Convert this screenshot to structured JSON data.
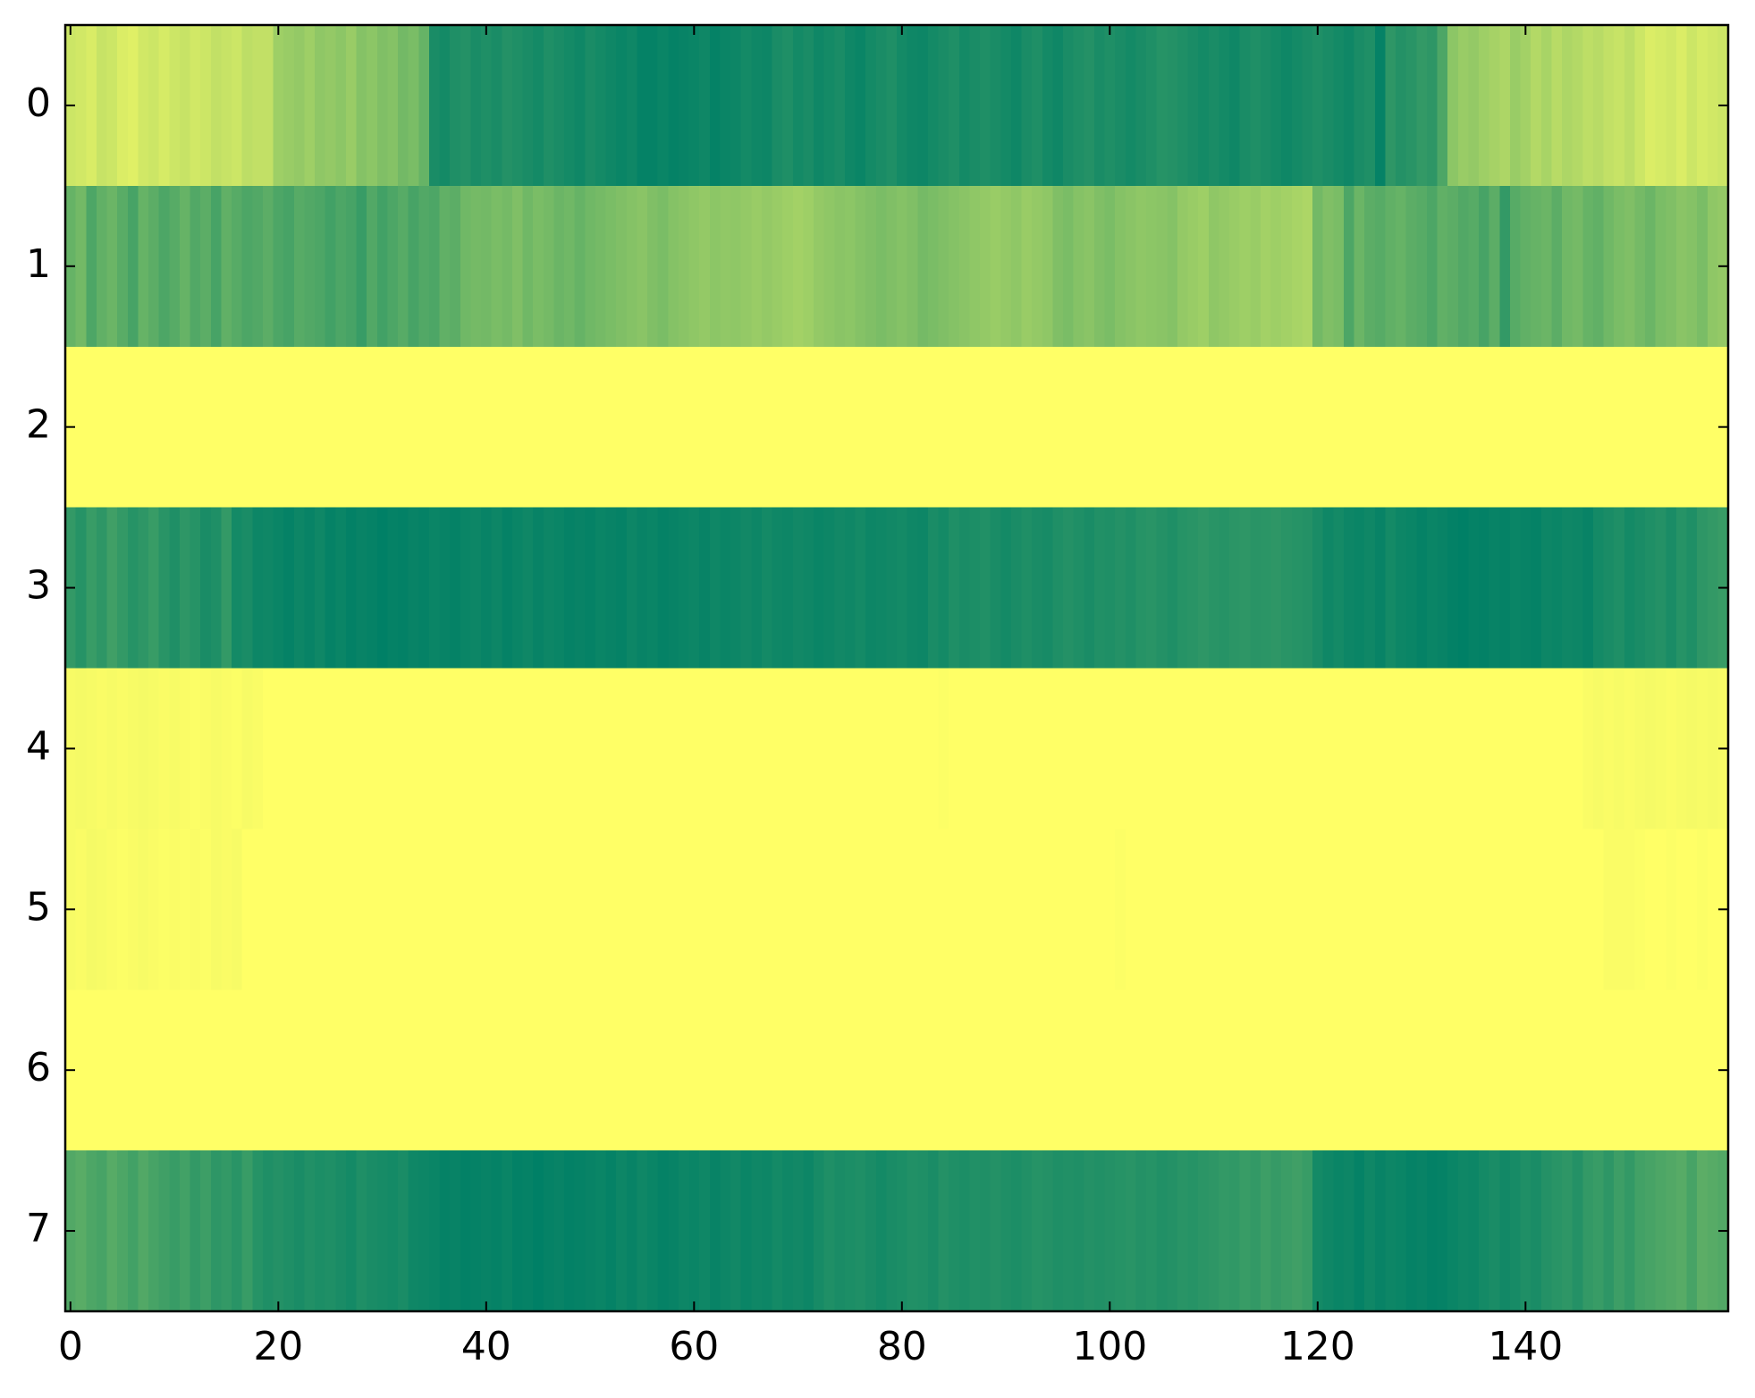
{
  "chart_data": {
    "type": "heatmap",
    "colormap": "summer",
    "xlim": [
      -0.5,
      159.5
    ],
    "ylim": [
      7.5,
      -0.5
    ],
    "xticks": [
      0,
      20,
      40,
      60,
      80,
      100,
      120,
      140
    ],
    "yticks": [
      0,
      1,
      2,
      3,
      4,
      5,
      6,
      7
    ],
    "z": [
      [
        0.8,
        0.82,
        0.85,
        0.78,
        0.8,
        0.86,
        0.88,
        0.82,
        0.8,
        0.84,
        0.8,
        0.78,
        0.82,
        0.8,
        0.76,
        0.78,
        0.8,
        0.74,
        0.76,
        0.76,
        0.62,
        0.6,
        0.58,
        0.62,
        0.56,
        0.58,
        0.55,
        0.6,
        0.52,
        0.55,
        0.5,
        0.52,
        0.45,
        0.48,
        0.4,
        0.1,
        0.08,
        0.12,
        0.14,
        0.1,
        0.12,
        0.1,
        0.14,
        0.12,
        0.1,
        0.08,
        0.12,
        0.1,
        0.08,
        0.06,
        0.1,
        0.08,
        0.06,
        0.04,
        0.06,
        0.02,
        0.02,
        0.04,
        0.02,
        0.03,
        0.04,
        0.06,
        0.02,
        0.04,
        0.05,
        0.08,
        0.06,
        0.05,
        0.1,
        0.12,
        0.08,
        0.1,
        0.06,
        0.08,
        0.1,
        0.06,
        0.04,
        0.08,
        0.1,
        0.12,
        0.08,
        0.06,
        0.05,
        0.08,
        0.1,
        0.12,
        0.08,
        0.1,
        0.12,
        0.1,
        0.08,
        0.06,
        0.1,
        0.12,
        0.08,
        0.06,
        0.1,
        0.12,
        0.14,
        0.1,
        0.12,
        0.1,
        0.08,
        0.1,
        0.12,
        0.15,
        0.14,
        0.12,
        0.1,
        0.08,
        0.1,
        0.08,
        0.06,
        0.1,
        0.12,
        0.1,
        0.08,
        0.06,
        0.08,
        0.1,
        0.12,
        0.1,
        0.08,
        0.06,
        0.1,
        0.12,
        0.02,
        0.18,
        0.14,
        0.16,
        0.2,
        0.18,
        0.3,
        0.55,
        0.6,
        0.58,
        0.62,
        0.65,
        0.68,
        0.6,
        0.64,
        0.7,
        0.66,
        0.72,
        0.68,
        0.7,
        0.74,
        0.72,
        0.76,
        0.78,
        0.74,
        0.8,
        0.86,
        0.84,
        0.82,
        0.86,
        0.8,
        0.84,
        0.82,
        0.8
      ],
      [
        0.4,
        0.45,
        0.3,
        0.38,
        0.42,
        0.35,
        0.28,
        0.4,
        0.36,
        0.3,
        0.34,
        0.4,
        0.32,
        0.36,
        0.28,
        0.38,
        0.34,
        0.3,
        0.32,
        0.36,
        0.3,
        0.28,
        0.34,
        0.32,
        0.3,
        0.26,
        0.3,
        0.28,
        0.22,
        0.32,
        0.26,
        0.3,
        0.34,
        0.28,
        0.32,
        0.3,
        0.38,
        0.36,
        0.44,
        0.46,
        0.45,
        0.48,
        0.46,
        0.5,
        0.44,
        0.48,
        0.46,
        0.42,
        0.44,
        0.4,
        0.44,
        0.46,
        0.48,
        0.5,
        0.52,
        0.54,
        0.5,
        0.48,
        0.52,
        0.54,
        0.56,
        0.58,
        0.55,
        0.57,
        0.56,
        0.58,
        0.6,
        0.58,
        0.6,
        0.62,
        0.64,
        0.62,
        0.58,
        0.56,
        0.54,
        0.55,
        0.52,
        0.5,
        0.48,
        0.5,
        0.52,
        0.5,
        0.46,
        0.48,
        0.5,
        0.52,
        0.54,
        0.56,
        0.58,
        0.6,
        0.58,
        0.56,
        0.6,
        0.58,
        0.56,
        0.5,
        0.48,
        0.52,
        0.54,
        0.5,
        0.48,
        0.52,
        0.54,
        0.56,
        0.55,
        0.54,
        0.52,
        0.58,
        0.6,
        0.62,
        0.56,
        0.58,
        0.6,
        0.62,
        0.6,
        0.64,
        0.62,
        0.64,
        0.66,
        0.68,
        0.45,
        0.5,
        0.48,
        0.3,
        0.42,
        0.36,
        0.34,
        0.38,
        0.4,
        0.36,
        0.34,
        0.3,
        0.38,
        0.36,
        0.32,
        0.34,
        0.28,
        0.36,
        0.2,
        0.34,
        0.38,
        0.4,
        0.42,
        0.36,
        0.44,
        0.46,
        0.4,
        0.38,
        0.44,
        0.48,
        0.5,
        0.46,
        0.42,
        0.48,
        0.5,
        0.54,
        0.52,
        0.48,
        0.56,
        0.58
      ],
      [
        1,
        1,
        1,
        1,
        1,
        1,
        1,
        1,
        1,
        1,
        1,
        1,
        1,
        1,
        1,
        1,
        1,
        1,
        1,
        1,
        1,
        1,
        1,
        1,
        1,
        1,
        1,
        1,
        1,
        1,
        1,
        1,
        1,
        1,
        1,
        1,
        1,
        1,
        1,
        1,
        1,
        1,
        1,
        1,
        1,
        1,
        1,
        1,
        1,
        1,
        1,
        1,
        1,
        1,
        1,
        1,
        1,
        1,
        1,
        1,
        1,
        1,
        1,
        1,
        1,
        1,
        1,
        1,
        1,
        1,
        1,
        1,
        1,
        1,
        1,
        1,
        1,
        1,
        1,
        1,
        1,
        1,
        1,
        1,
        1,
        1,
        1,
        1,
        1,
        1,
        1,
        1,
        1,
        1,
        1,
        1,
        1,
        1,
        1,
        1,
        1,
        1,
        1,
        1,
        1,
        1,
        1,
        1,
        1,
        1,
        1,
        1,
        1,
        1,
        1,
        1,
        1,
        1,
        1,
        1,
        1,
        1,
        1,
        1,
        1,
        1,
        1,
        1,
        1,
        1,
        1,
        1,
        1,
        1,
        1,
        1,
        1,
        1,
        1,
        1,
        1,
        1,
        1,
        1,
        1,
        1,
        1,
        1,
        1,
        1,
        1,
        1,
        1,
        1,
        1,
        1,
        1,
        1,
        1,
        1
      ],
      [
        0.2,
        0.15,
        0.22,
        0.18,
        0.25,
        0.2,
        0.15,
        0.18,
        0.22,
        0.16,
        0.12,
        0.18,
        0.15,
        0.1,
        0.12,
        0.2,
        0.08,
        0.1,
        0.05,
        0.06,
        0.04,
        0.02,
        0.05,
        0.03,
        0.06,
        0.02,
        0.04,
        0.01,
        0.03,
        0.02,
        0.0,
        0.02,
        0.01,
        0.03,
        0.02,
        0.04,
        0.03,
        0.02,
        0.04,
        0.05,
        0.03,
        0.05,
        0.02,
        0.04,
        0.06,
        0.03,
        0.05,
        0.04,
        0.02,
        0.03,
        0.02,
        0.04,
        0.03,
        0.02,
        0.05,
        0.03,
        0.04,
        0.02,
        0.03,
        0.04,
        0.05,
        0.03,
        0.06,
        0.04,
        0.05,
        0.07,
        0.05,
        0.08,
        0.06,
        0.05,
        0.07,
        0.06,
        0.04,
        0.05,
        0.07,
        0.06,
        0.08,
        0.05,
        0.06,
        0.07,
        0.08,
        0.06,
        0.05,
        0.1,
        0.08,
        0.12,
        0.1,
        0.11,
        0.13,
        0.1,
        0.08,
        0.1,
        0.12,
        0.1,
        0.09,
        0.12,
        0.14,
        0.12,
        0.1,
        0.13,
        0.12,
        0.14,
        0.12,
        0.15,
        0.16,
        0.14,
        0.12,
        0.15,
        0.16,
        0.18,
        0.16,
        0.15,
        0.17,
        0.18,
        0.16,
        0.17,
        0.18,
        0.16,
        0.15,
        0.14,
        0.1,
        0.06,
        0.08,
        0.05,
        0.04,
        0.06,
        0.03,
        0.08,
        0.05,
        0.04,
        0.02,
        0.04,
        0.03,
        0.01,
        0.0,
        0.02,
        0.01,
        0.03,
        0.02,
        0.04,
        0.03,
        0.02,
        0.05,
        0.04,
        0.06,
        0.05,
        0.03,
        0.08,
        0.1,
        0.12,
        0.08,
        0.1,
        0.12,
        0.14,
        0.1,
        0.15,
        0.12,
        0.18,
        0.2,
        0.22
      ],
      [
        0.97,
        0.96,
        0.97,
        0.98,
        0.97,
        0.98,
        0.97,
        0.96,
        0.97,
        0.98,
        0.97,
        0.98,
        0.99,
        0.98,
        0.97,
        0.98,
        0.99,
        0.97,
        0.98,
        1,
        1,
        1,
        1,
        1,
        1,
        1,
        1,
        1,
        1,
        1,
        1,
        1,
        1,
        1,
        1,
        1,
        1,
        1,
        1,
        1,
        1,
        1,
        1,
        1,
        1,
        1,
        1,
        1,
        1,
        1,
        1,
        1,
        1,
        1,
        1,
        1,
        1,
        1,
        1,
        1,
        1,
        1,
        1,
        1,
        1,
        1,
        1,
        1,
        1,
        1,
        1,
        1,
        1,
        1,
        1,
        1,
        1,
        1,
        1,
        1,
        1,
        1,
        1,
        1,
        0.99,
        1,
        1,
        1,
        1,
        1,
        1,
        1,
        1,
        1,
        1,
        1,
        1,
        1,
        1,
        1,
        1,
        1,
        1,
        1,
        1,
        1,
        1,
        1,
        1,
        1,
        1,
        1,
        1,
        1,
        1,
        1,
        1,
        1,
        1,
        1,
        1,
        1,
        1,
        1,
        1,
        1,
        1,
        1,
        1,
        1,
        1,
        1,
        1,
        1,
        1,
        1,
        1,
        1,
        1,
        1,
        1,
        1,
        1,
        1,
        1,
        1,
        0.98,
        0.97,
        0.98,
        0.97,
        0.98,
        0.97,
        0.96,
        0.97,
        0.98,
        0.97,
        0.96,
        0.97,
        0.96,
        0.97
      ],
      [
        0.97,
        0.98,
        0.96,
        0.97,
        0.98,
        0.99,
        0.98,
        0.97,
        0.98,
        0.99,
        0.98,
        0.99,
        0.98,
        0.99,
        0.97,
        0.98,
        0.97,
        1,
        1,
        1,
        1,
        1,
        1,
        1,
        1,
        1,
        1,
        1,
        1,
        1,
        1,
        1,
        1,
        1,
        1,
        1,
        1,
        1,
        1,
        1,
        1,
        1,
        1,
        1,
        1,
        1,
        1,
        1,
        1,
        1,
        1,
        1,
        1,
        1,
        1,
        1,
        1,
        1,
        1,
        1,
        1,
        1,
        1,
        1,
        1,
        1,
        1,
        1,
        1,
        1,
        1,
        1,
        1,
        1,
        1,
        1,
        1,
        1,
        1,
        1,
        1,
        1,
        1,
        1,
        1,
        1,
        1,
        1,
        1,
        1,
        1,
        1,
        1,
        1,
        1,
        1,
        1,
        1,
        1,
        1,
        1,
        0.99,
        1,
        1,
        1,
        1,
        1,
        1,
        1,
        1,
        1,
        1,
        1,
        1,
        1,
        1,
        1,
        1,
        1,
        1,
        1,
        1,
        1,
        1,
        1,
        1,
        1,
        1,
        1,
        1,
        1,
        1,
        1,
        1,
        1,
        1,
        1,
        1,
        1,
        1,
        1,
        1,
        1,
        1,
        1,
        1,
        1,
        1,
        0.98,
        0.98,
        0.98,
        0.99,
        1,
        1,
        0.99,
        1,
        1,
        0.99,
        1,
        1
      ],
      [
        1,
        1,
        1,
        1,
        1,
        1,
        1,
        1,
        1,
        1,
        1,
        1,
        1,
        1,
        1,
        1,
        1,
        1,
        1,
        1,
        1,
        1,
        1,
        1,
        1,
        1,
        1,
        1,
        1,
        1,
        1,
        1,
        1,
        1,
        1,
        1,
        1,
        1,
        1,
        1,
        1,
        1,
        1,
        1,
        1,
        1,
        1,
        1,
        1,
        1,
        1,
        1,
        1,
        1,
        1,
        1,
        1,
        1,
        1,
        1,
        1,
        1,
        1,
        1,
        1,
        1,
        1,
        1,
        1,
        1,
        1,
        1,
        1,
        1,
        1,
        1,
        1,
        1,
        1,
        1,
        1,
        1,
        1,
        1,
        1,
        1,
        1,
        1,
        1,
        1,
        1,
        1,
        1,
        1,
        1,
        1,
        1,
        1,
        1,
        1,
        1,
        1,
        1,
        1,
        1,
        1,
        1,
        1,
        1,
        1,
        1,
        1,
        1,
        1,
        1,
        1,
        1,
        1,
        1,
        1,
        1,
        1,
        1,
        1,
        1,
        1,
        1,
        1,
        1,
        1,
        1,
        1,
        1,
        1,
        1,
        1,
        1,
        1,
        1,
        1,
        1,
        1,
        1,
        1,
        1,
        1,
        1,
        1,
        1,
        1,
        1,
        1,
        1,
        1,
        1,
        1,
        1,
        1,
        1,
        1
      ],
      [
        0.32,
        0.35,
        0.3,
        0.28,
        0.34,
        0.3,
        0.26,
        0.32,
        0.28,
        0.25,
        0.22,
        0.26,
        0.2,
        0.24,
        0.18,
        0.2,
        0.16,
        0.22,
        0.15,
        0.12,
        0.14,
        0.12,
        0.1,
        0.13,
        0.11,
        0.12,
        0.1,
        0.08,
        0.12,
        0.1,
        0.09,
        0.08,
        0.1,
        0.06,
        0.05,
        0.04,
        0.02,
        0.03,
        0.01,
        0.02,
        0.03,
        0.02,
        0.04,
        0.01,
        0.02,
        0.0,
        0.02,
        0.03,
        0.01,
        0.02,
        0.03,
        0.04,
        0.02,
        0.05,
        0.03,
        0.06,
        0.04,
        0.02,
        0.03,
        0.05,
        0.04,
        0.06,
        0.03,
        0.05,
        0.07,
        0.04,
        0.06,
        0.05,
        0.08,
        0.06,
        0.07,
        0.05,
        0.09,
        0.12,
        0.1,
        0.11,
        0.12,
        0.1,
        0.08,
        0.1,
        0.11,
        0.13,
        0.12,
        0.1,
        0.14,
        0.12,
        0.11,
        0.13,
        0.12,
        0.14,
        0.12,
        0.11,
        0.13,
        0.15,
        0.14,
        0.12,
        0.13,
        0.12,
        0.14,
        0.13,
        0.14,
        0.15,
        0.16,
        0.14,
        0.15,
        0.13,
        0.14,
        0.16,
        0.15,
        0.17,
        0.18,
        0.2,
        0.19,
        0.22,
        0.2,
        0.24,
        0.21,
        0.23,
        0.25,
        0.22,
        0.08,
        0.06,
        0.04,
        0.05,
        0.02,
        0.06,
        0.03,
        0.05,
        0.04,
        0.02,
        0.03,
        0.01,
        0.02,
        0.04,
        0.06,
        0.05,
        0.08,
        0.1,
        0.07,
        0.09,
        0.12,
        0.1,
        0.14,
        0.16,
        0.18,
        0.14,
        0.2,
        0.22,
        0.18,
        0.24,
        0.2,
        0.26,
        0.28,
        0.3,
        0.32,
        0.34,
        0.28,
        0.36,
        0.34,
        0.32
      ]
    ]
  }
}
